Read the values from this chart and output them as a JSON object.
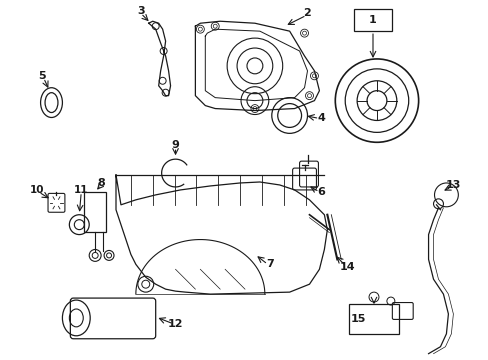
{
  "background_color": "#ffffff",
  "line_color": "#1a1a1a",
  "figsize": [
    4.89,
    3.6
  ],
  "dpi": 100,
  "lw": 0.9
}
